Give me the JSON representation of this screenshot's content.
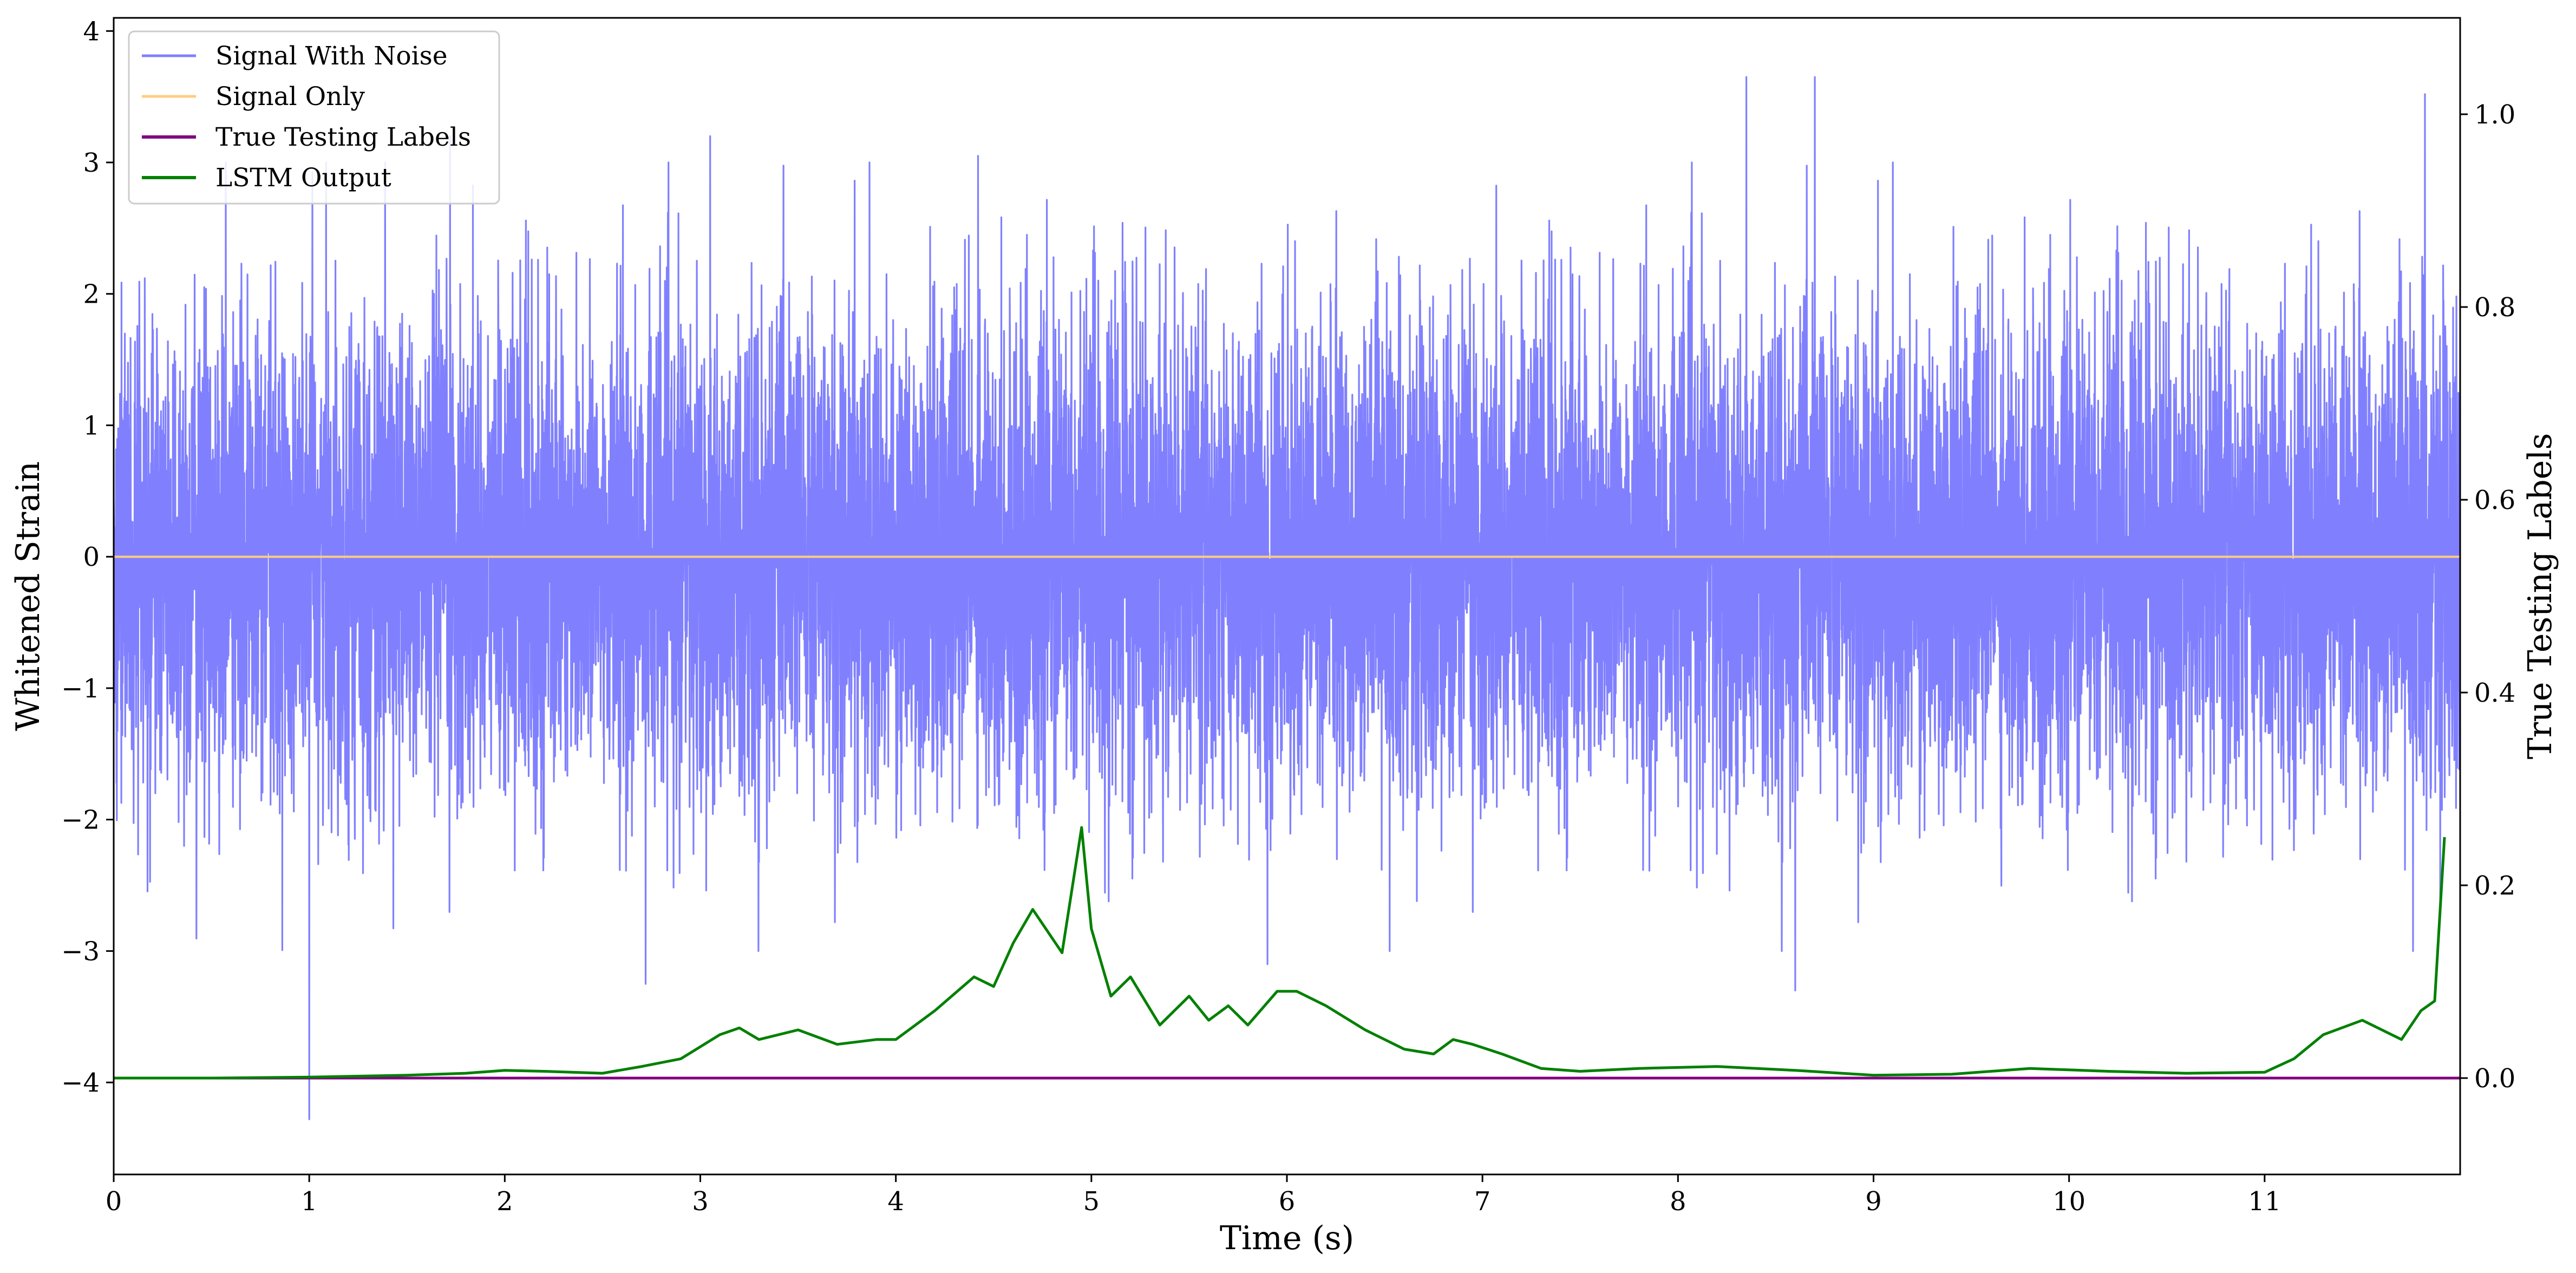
{
  "chart_data": {
    "type": "line",
    "xlabel": "Time (s)",
    "ylabel": "Whitened Strain",
    "ylabel_right": "True Testing Labels",
    "xlim": [
      0,
      12
    ],
    "ylim_left": [
      -4.7,
      4.1
    ],
    "ylim_right": [
      -0.1,
      1.1
    ],
    "x_ticks": [
      0,
      1,
      2,
      3,
      4,
      5,
      6,
      7,
      8,
      9,
      10,
      11
    ],
    "y_ticks_left": [
      -4,
      -3,
      -2,
      -1,
      0,
      1,
      2,
      3,
      4
    ],
    "y_ticks_right": [
      0.0,
      0.2,
      0.4,
      0.6,
      0.8,
      1.0
    ],
    "legend_position": "upper-left",
    "series": [
      {
        "name": "Signal With Noise",
        "axis": "left",
        "color": "#8080ff",
        "kind": "dense-noise",
        "x_range": [
          0,
          12
        ],
        "noise_std": 0.9,
        "outliers": [
          [
            1.0,
            -4.28
          ],
          [
            2.72,
            -3.25
          ],
          [
            3.05,
            3.2
          ],
          [
            4.42,
            3.05
          ],
          [
            5.9,
            -3.1
          ],
          [
            8.35,
            3.65
          ],
          [
            8.7,
            3.65
          ],
          [
            11.82,
            3.52
          ],
          [
            8.6,
            -3.3
          ],
          [
            1.72,
            3.2
          ]
        ]
      },
      {
        "name": "Signal Only",
        "axis": "left",
        "color": "#ffcc80",
        "x": [
          0,
          12
        ],
        "y": [
          0,
          0
        ]
      },
      {
        "name": "True Testing Labels",
        "axis": "right",
        "color": "#800080",
        "x": [
          0,
          12
        ],
        "y": [
          0,
          0
        ]
      },
      {
        "name": "LSTM Output",
        "axis": "right",
        "color": "#008000",
        "x": [
          0,
          0.5,
          1.0,
          1.5,
          1.8,
          2.0,
          2.2,
          2.5,
          2.7,
          2.9,
          3.1,
          3.2,
          3.3,
          3.5,
          3.7,
          3.9,
          4.0,
          4.1,
          4.2,
          4.4,
          4.5,
          4.6,
          4.7,
          4.85,
          4.95,
          5.0,
          5.1,
          5.2,
          5.35,
          5.5,
          5.6,
          5.7,
          5.8,
          5.95,
          6.05,
          6.2,
          6.4,
          6.6,
          6.75,
          6.85,
          6.95,
          7.1,
          7.3,
          7.5,
          7.8,
          8.2,
          8.6,
          9.0,
          9.4,
          9.8,
          10.2,
          10.6,
          11.0,
          11.15,
          11.3,
          11.5,
          11.7,
          11.8,
          11.87,
          11.92
        ],
        "y": [
          0,
          0,
          0.001,
          0.003,
          0.005,
          0.008,
          0.007,
          0.005,
          0.012,
          0.02,
          0.045,
          0.052,
          0.04,
          0.05,
          0.035,
          0.04,
          0.04,
          0.055,
          0.07,
          0.105,
          0.095,
          0.14,
          0.175,
          0.13,
          0.26,
          0.155,
          0.085,
          0.105,
          0.055,
          0.085,
          0.06,
          0.075,
          0.055,
          0.09,
          0.09,
          0.075,
          0.05,
          0.03,
          0.025,
          0.04,
          0.035,
          0.025,
          0.01,
          0.007,
          0.01,
          0.012,
          0.008,
          0.003,
          0.004,
          0.01,
          0.007,
          0.005,
          0.006,
          0.02,
          0.045,
          0.06,
          0.04,
          0.07,
          0.08,
          0.25
        ]
      }
    ]
  }
}
